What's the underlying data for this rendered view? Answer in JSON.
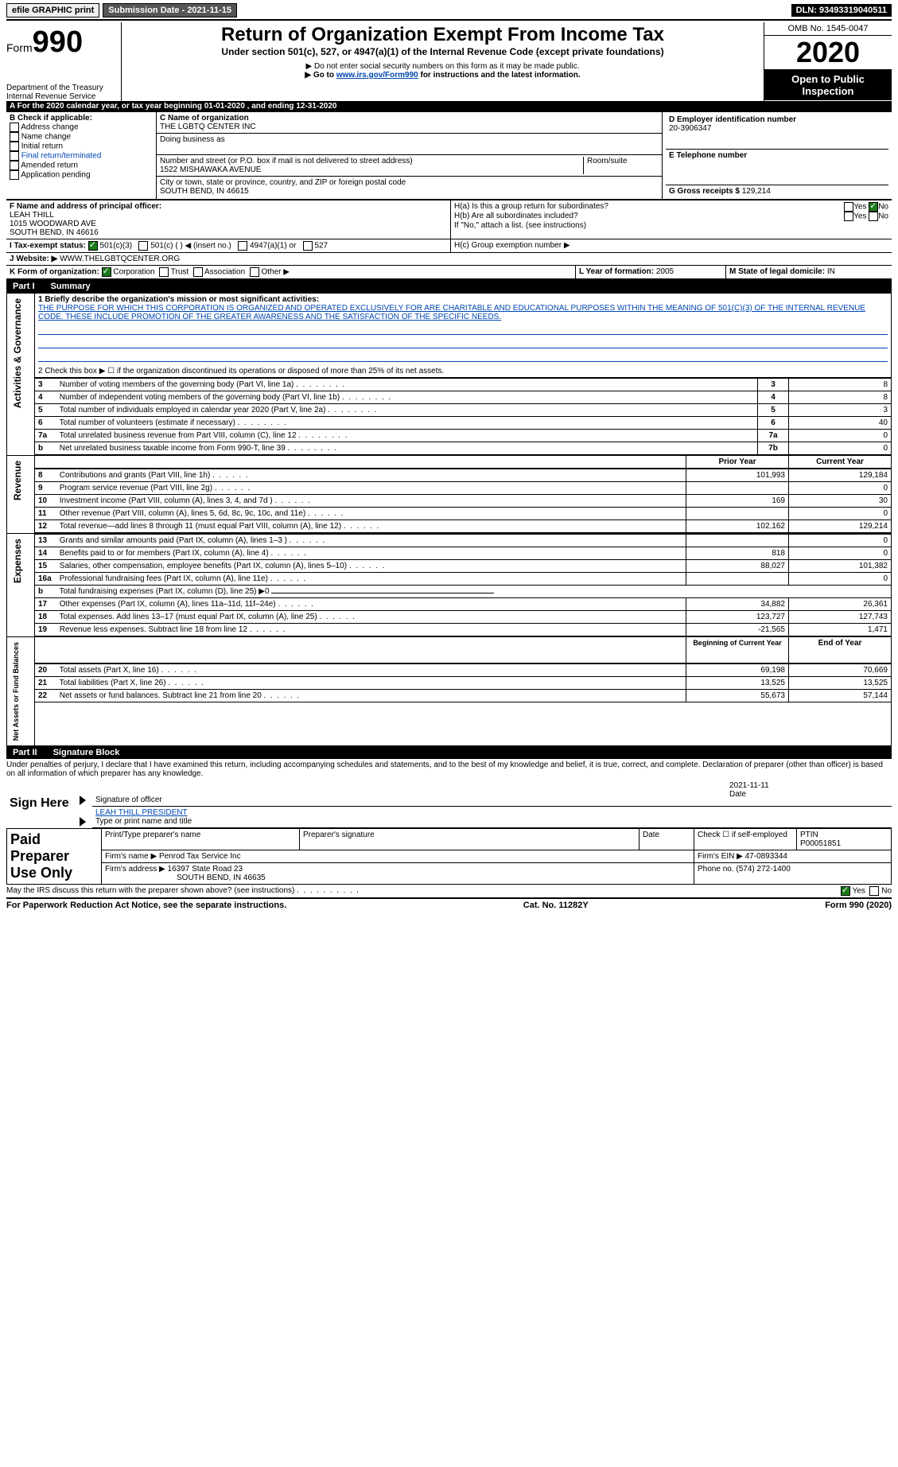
{
  "topbar": {
    "efile": "efile GRAPHIC print",
    "submission_label": "Submission Date - 2021-11-15",
    "dln": "DLN: 93493319040511"
  },
  "header": {
    "form_prefix": "Form",
    "form_number": "990",
    "dept": "Department of the Treasury",
    "irs": "Internal Revenue Service",
    "main_title": "Return of Organization Exempt From Income Tax",
    "sub_title": "Under section 501(c), 527, or 4947(a)(1) of the Internal Revenue Code (except private foundations)",
    "note1": "▶ Do not enter social security numbers on this form as it may be made public.",
    "note2_prefix": "▶ Go to ",
    "note2_link": "www.irs.gov/Form990",
    "note2_suffix": " for instructions and the latest information.",
    "omb": "OMB No. 1545-0047",
    "tax_year": "2020",
    "open_public": "Open to Public Inspection"
  },
  "section_a": "A For the 2020 calendar year, or tax year beginning 01-01-2020    , and ending 12-31-2020",
  "b": {
    "label": "B Check if applicable:",
    "items": [
      "Address change",
      "Name change",
      "Initial return",
      "Final return/terminated",
      "Amended return",
      "Application pending"
    ]
  },
  "c": {
    "name_label": "C Name of organization",
    "name": "THE LGBTQ CENTER INC",
    "dba_label": "Doing business as",
    "street_label": "Number and street (or P.O. box if mail is not delivered to street address)",
    "room_label": "Room/suite",
    "street": "1522 MISHAWAKA AVENUE",
    "city_label": "City or town, state or province, country, and ZIP or foreign postal code",
    "city": "SOUTH BEND, IN  46615"
  },
  "d": {
    "label": "D Employer identification number",
    "value": "20-3906347"
  },
  "e": {
    "label": "E Telephone number"
  },
  "g": {
    "label": "G Gross receipts $",
    "value": "129,214"
  },
  "f": {
    "label": "F  Name and address of principal officer:",
    "name": "LEAH THILL",
    "street": "1015 WOODWARD AVE",
    "city": "SOUTH BEND, IN  46616"
  },
  "h": {
    "a_label": "H(a)  Is this a group return for subordinates?",
    "b_label": "H(b)  Are all subordinates included?",
    "note": "If \"No,\" attach a list. (see instructions)",
    "c_label": "H(c)  Group exemption number ▶"
  },
  "i": {
    "label": "I    Tax-exempt status:",
    "opts": [
      "501(c)(3)",
      "501(c) (  ) ◀ (insert no.)",
      "4947(a)(1) or",
      "527"
    ]
  },
  "j": {
    "label": "J   Website: ▶",
    "value": "WWW.THELGBTQCENTER.ORG"
  },
  "k": {
    "label": "K Form of organization:",
    "opts": [
      "Corporation",
      "Trust",
      "Association",
      "Other ▶"
    ]
  },
  "l": {
    "label": "L Year of formation:",
    "value": "2005"
  },
  "m": {
    "label": "M State of legal domicile:",
    "value": "IN"
  },
  "part1": {
    "title": "Part I",
    "subtitle": "Summary",
    "line1_label": "1  Briefly describe the organization's mission or most significant activities:",
    "mission": "THE PURPOSE FOR WHICH THIS CORPORATION IS ORGANIZED AND OPERATED EXCLUSIVELY FOR ARE CHARITABLE AND EDUCATIONAL PURPOSES WITHIN THE MEANING OF 501(C)(3) OF THE INTERNAL REVENUE CODE. THESE INCLUDE PROMOTION OF THE GREATER AWARENESS AND THE SATISFACTION OF THE SPECIFIC NEEDS.",
    "line2": "2   Check this box ▶ ☐ if the organization discontinued its operations or disposed of more than 25% of its net assets.",
    "gov_lines": [
      {
        "n": "3",
        "t": "Number of voting members of the governing body (Part VI, line 1a)",
        "k": "3",
        "v": "8"
      },
      {
        "n": "4",
        "t": "Number of independent voting members of the governing body (Part VI, line 1b)",
        "k": "4",
        "v": "8"
      },
      {
        "n": "5",
        "t": "Total number of individuals employed in calendar year 2020 (Part V, line 2a)",
        "k": "5",
        "v": "3"
      },
      {
        "n": "6",
        "t": "Total number of volunteers (estimate if necessary)",
        "k": "6",
        "v": "40"
      },
      {
        "n": "7a",
        "t": "Total unrelated business revenue from Part VIII, column (C), line 12",
        "k": "7a",
        "v": "0"
      },
      {
        "n": "b",
        "t": "Net unrelated business taxable income from Form 990-T, line 39",
        "k": "7b",
        "v": "0"
      }
    ],
    "col_prior": "Prior Year",
    "col_current": "Current Year",
    "revenue": [
      {
        "n": "8",
        "t": "Contributions and grants (Part VIII, line 1h)",
        "p": "101,993",
        "c": "129,184"
      },
      {
        "n": "9",
        "t": "Program service revenue (Part VIII, line 2g)",
        "p": "",
        "c": "0"
      },
      {
        "n": "10",
        "t": "Investment income (Part VIII, column (A), lines 3, 4, and 7d )",
        "p": "169",
        "c": "30"
      },
      {
        "n": "11",
        "t": "Other revenue (Part VIII, column (A), lines 5, 6d, 8c, 9c, 10c, and 11e)",
        "p": "",
        "c": "0"
      },
      {
        "n": "12",
        "t": "Total revenue—add lines 8 through 11 (must equal Part VIII, column (A), line 12)",
        "p": "102,162",
        "c": "129,214"
      }
    ],
    "expenses": [
      {
        "n": "13",
        "t": "Grants and similar amounts paid (Part IX, column (A), lines 1–3 )",
        "p": "",
        "c": "0"
      },
      {
        "n": "14",
        "t": "Benefits paid to or for members (Part IX, column (A), line 4)",
        "p": "818",
        "c": "0"
      },
      {
        "n": "15",
        "t": "Salaries, other compensation, employee benefits (Part IX, column (A), lines 5–10)",
        "p": "88,027",
        "c": "101,382"
      },
      {
        "n": "16a",
        "t": "Professional fundraising fees (Part IX, column (A), line 11e)",
        "p": "",
        "c": "0"
      },
      {
        "n": "b",
        "t": "Total fundraising expenses (Part IX, column (D), line 25) ▶0",
        "p": null,
        "c": null
      },
      {
        "n": "17",
        "t": "Other expenses (Part IX, column (A), lines 11a–11d, 11f–24e)",
        "p": "34,882",
        "c": "26,361"
      },
      {
        "n": "18",
        "t": "Total expenses. Add lines 13–17 (must equal Part IX, column (A), line 25)",
        "p": "123,727",
        "c": "127,743"
      },
      {
        "n": "19",
        "t": "Revenue less expenses. Subtract line 18 from line 12",
        "p": "-21,565",
        "c": "1,471"
      }
    ],
    "col_begin": "Beginning of Current Year",
    "col_end": "End of Year",
    "netassets": [
      {
        "n": "20",
        "t": "Total assets (Part X, line 16)",
        "p": "69,198",
        "c": "70,669"
      },
      {
        "n": "21",
        "t": "Total liabilities (Part X, line 26)",
        "p": "13,525",
        "c": "13,525"
      },
      {
        "n": "22",
        "t": "Net assets or fund balances. Subtract line 21 from line 20",
        "p": "55,673",
        "c": "57,144"
      }
    ],
    "side_labels": {
      "gov": "Activities & Governance",
      "rev": "Revenue",
      "exp": "Expenses",
      "net": "Net Assets or Fund Balances"
    }
  },
  "part2": {
    "title": "Part II",
    "subtitle": "Signature Block",
    "declaration": "Under penalties of perjury, I declare that I have examined this return, including accompanying schedules and statements, and to the best of my knowledge and belief, it is true, correct, and complete. Declaration of preparer (other than officer) is based on all information of which preparer has any knowledge.",
    "sign_here": "Sign Here",
    "sig_officer": "Signature of officer",
    "sig_date": "2021-11-11",
    "date_label": "Date",
    "sig_name": "LEAH THILL  PRESIDENT",
    "sig_name_label": "Type or print name and title",
    "paid_prep": "Paid Preparer Use Only",
    "prep_name_label": "Print/Type preparer's name",
    "prep_sig_label": "Preparer's signature",
    "check_self": "Check ☐ if self-employed",
    "ptin_label": "PTIN",
    "ptin": "P00051851",
    "firm_name_label": "Firm's name    ▶",
    "firm_name": "Penrod Tax Service Inc",
    "firm_ein_label": "Firm's EIN ▶",
    "firm_ein": "47-0893344",
    "firm_addr_label": "Firm's address ▶",
    "firm_addr1": "16397 State Road 23",
    "firm_addr2": "SOUTH BEND, IN  46635",
    "phone_label": "Phone no.",
    "phone": "(574) 272-1400",
    "may_irs": "May the IRS discuss this return with the preparer shown above? (see instructions)"
  },
  "footer": {
    "left": "For Paperwork Reduction Act Notice, see the separate instructions.",
    "center": "Cat. No. 11282Y",
    "right_prefix": "Form ",
    "right_form": "990",
    "right_suffix": " (2020)"
  }
}
